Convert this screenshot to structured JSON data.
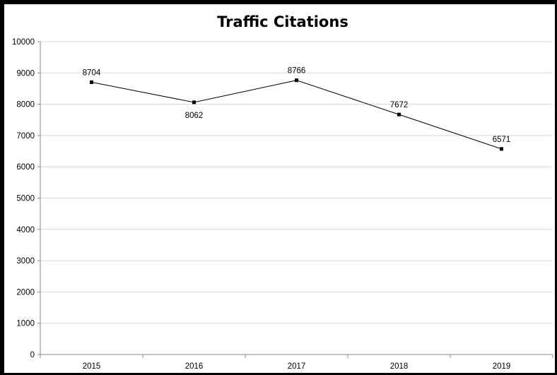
{
  "chart_data": {
    "type": "line",
    "title": "Traffic Citations",
    "xlabel": "",
    "ylabel": "",
    "categories": [
      "2015",
      "2016",
      "2017",
      "2018",
      "2019"
    ],
    "series": [
      {
        "values": [
          8704,
          8062,
          8766,
          7672,
          6571
        ],
        "color": "#000000"
      }
    ],
    "ylim": [
      0,
      10000
    ],
    "yticks": [
      "0",
      "1000",
      "2000",
      "3000",
      "4000",
      "5000",
      "6000",
      "7000",
      "8000",
      "9000",
      "10000"
    ],
    "data_labels": [
      "8704",
      "8062",
      "8766",
      "7672",
      "6571"
    ],
    "label_positions": [
      "above",
      "below",
      "above",
      "above",
      "above"
    ],
    "grid": true,
    "gridline_color": "#d9d9d9",
    "axis_color": "#888888",
    "legend": "none"
  }
}
